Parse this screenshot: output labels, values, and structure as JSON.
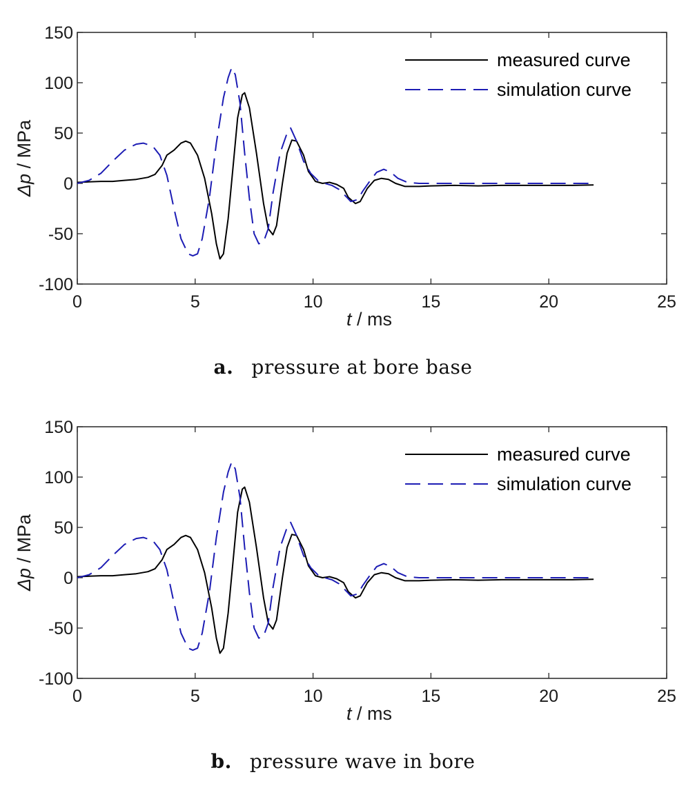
{
  "colors": {
    "measured": "#000000",
    "simulation": "#1c1cb4",
    "axis": "#262626"
  },
  "chart_data": [
    {
      "type": "line",
      "caption_letter": "a.",
      "caption_text": "pressure at bore base",
      "xlabel_var": "t",
      "xlabel_unit": " / ms",
      "ylabel_var": "Δp",
      "ylabel_unit": " / MPa",
      "xlim": [
        0,
        25
      ],
      "ylim": [
        -100,
        150
      ],
      "xticks": [
        0,
        5,
        10,
        15,
        20,
        25
      ],
      "yticks": [
        -100,
        -50,
        0,
        50,
        100,
        150
      ],
      "grid": false,
      "legend_position": "top-right",
      "series": [
        {
          "name": "measured curve",
          "style": "solid",
          "color_key": "measured",
          "points": [
            [
              0,
              1
            ],
            [
              0.5,
              1.5
            ],
            [
              1,
              2
            ],
            [
              1.5,
              2
            ],
            [
              2,
              3
            ],
            [
              2.5,
              4
            ],
            [
              3,
              6
            ],
            [
              3.3,
              9
            ],
            [
              3.6,
              18
            ],
            [
              3.8,
              28
            ],
            [
              4.1,
              33
            ],
            [
              4.4,
              40
            ],
            [
              4.6,
              42
            ],
            [
              4.8,
              40
            ],
            [
              5.1,
              28
            ],
            [
              5.4,
              5
            ],
            [
              5.7,
              -30
            ],
            [
              5.9,
              -60
            ],
            [
              6.05,
              -75
            ],
            [
              6.2,
              -70
            ],
            [
              6.4,
              -35
            ],
            [
              6.6,
              15
            ],
            [
              6.8,
              65
            ],
            [
              7.0,
              88
            ],
            [
              7.1,
              90
            ],
            [
              7.3,
              75
            ],
            [
              7.6,
              30
            ],
            [
              7.9,
              -20
            ],
            [
              8.1,
              -45
            ],
            [
              8.3,
              -51
            ],
            [
              8.45,
              -42
            ],
            [
              8.7,
              0
            ],
            [
              8.9,
              30
            ],
            [
              9.1,
              43
            ],
            [
              9.3,
              42
            ],
            [
              9.6,
              28
            ],
            [
              9.8,
              12
            ],
            [
              10.1,
              2
            ],
            [
              10.4,
              0
            ],
            [
              10.7,
              1
            ],
            [
              11.0,
              -1
            ],
            [
              11.3,
              -5
            ],
            [
              11.5,
              -14
            ],
            [
              11.8,
              -20
            ],
            [
              12.0,
              -18
            ],
            [
              12.3,
              -5
            ],
            [
              12.6,
              3
            ],
            [
              12.9,
              5
            ],
            [
              13.2,
              4
            ],
            [
              13.5,
              0
            ],
            [
              13.9,
              -3
            ],
            [
              14.5,
              -3
            ],
            [
              15,
              -2.5
            ],
            [
              16,
              -2
            ],
            [
              17,
              -2.5
            ],
            [
              18,
              -2
            ],
            [
              19,
              -2
            ],
            [
              20,
              -2
            ],
            [
              21,
              -2
            ],
            [
              21.9,
              -1.5
            ]
          ]
        },
        {
          "name": "simulation curve",
          "style": "dashed",
          "color_key": "simulation",
          "points": [
            [
              0,
              0
            ],
            [
              0.5,
              3
            ],
            [
              1,
              10
            ],
            [
              1.5,
              22
            ],
            [
              2,
              33
            ],
            [
              2.5,
              39
            ],
            [
              2.8,
              40
            ],
            [
              3.2,
              37
            ],
            [
              3.5,
              28
            ],
            [
              3.8,
              8
            ],
            [
              4.1,
              -25
            ],
            [
              4.4,
              -55
            ],
            [
              4.7,
              -70
            ],
            [
              4.9,
              -72
            ],
            [
              5.1,
              -70
            ],
            [
              5.3,
              -55
            ],
            [
              5.6,
              -15
            ],
            [
              5.9,
              40
            ],
            [
              6.2,
              85
            ],
            [
              6.4,
              105
            ],
            [
              6.55,
              115
            ],
            [
              6.7,
              108
            ],
            [
              6.9,
              80
            ],
            [
              7.1,
              30
            ],
            [
              7.3,
              -15
            ],
            [
              7.5,
              -50
            ],
            [
              7.7,
              -60
            ],
            [
              7.9,
              -58
            ],
            [
              8.1,
              -45
            ],
            [
              8.3,
              -10
            ],
            [
              8.6,
              30
            ],
            [
              8.9,
              50
            ],
            [
              9.05,
              55
            ],
            [
              9.3,
              42
            ],
            [
              9.6,
              22
            ],
            [
              9.9,
              10
            ],
            [
              10.2,
              3
            ],
            [
              10.5,
              0
            ],
            [
              10.8,
              -2
            ],
            [
              11.1,
              -6
            ],
            [
              11.4,
              -13
            ],
            [
              11.6,
              -18
            ],
            [
              11.9,
              -16
            ],
            [
              12.1,
              -8
            ],
            [
              12.4,
              2
            ],
            [
              12.7,
              11
            ],
            [
              13.0,
              14
            ],
            [
              13.3,
              11
            ],
            [
              13.6,
              5
            ],
            [
              14.0,
              1
            ],
            [
              14.5,
              0
            ],
            [
              15,
              0
            ],
            [
              16,
              0
            ],
            [
              17,
              0
            ],
            [
              18,
              0
            ],
            [
              19,
              0
            ],
            [
              20,
              0
            ],
            [
              21,
              0
            ],
            [
              21.9,
              0
            ]
          ]
        }
      ]
    },
    {
      "type": "line",
      "caption_letter": "b.",
      "caption_text": "pressure wave in bore",
      "xlabel_var": "t",
      "xlabel_unit": " / ms",
      "ylabel_var": "Δp",
      "ylabel_unit": " / MPa",
      "xlim": [
        0,
        25
      ],
      "ylim": [
        -100,
        150
      ],
      "xticks": [
        0,
        5,
        10,
        15,
        20,
        25
      ],
      "yticks": [
        -100,
        -50,
        0,
        50,
        100,
        150
      ],
      "grid": false,
      "legend_position": "top-right",
      "series": [
        {
          "name": "measured curve",
          "style": "solid",
          "color_key": "measured",
          "points": [
            [
              0,
              1
            ],
            [
              0.5,
              1.5
            ],
            [
              1,
              2
            ],
            [
              1.5,
              2
            ],
            [
              2,
              3
            ],
            [
              2.5,
              4
            ],
            [
              3,
              6
            ],
            [
              3.3,
              9
            ],
            [
              3.6,
              18
            ],
            [
              3.8,
              28
            ],
            [
              4.1,
              33
            ],
            [
              4.4,
              40
            ],
            [
              4.6,
              42
            ],
            [
              4.8,
              40
            ],
            [
              5.1,
              28
            ],
            [
              5.4,
              5
            ],
            [
              5.7,
              -30
            ],
            [
              5.9,
              -60
            ],
            [
              6.05,
              -75
            ],
            [
              6.2,
              -70
            ],
            [
              6.4,
              -35
            ],
            [
              6.6,
              15
            ],
            [
              6.8,
              65
            ],
            [
              7.0,
              88
            ],
            [
              7.1,
              90
            ],
            [
              7.3,
              75
            ],
            [
              7.6,
              30
            ],
            [
              7.9,
              -20
            ],
            [
              8.1,
              -45
            ],
            [
              8.3,
              -51
            ],
            [
              8.45,
              -42
            ],
            [
              8.7,
              0
            ],
            [
              8.9,
              30
            ],
            [
              9.1,
              43
            ],
            [
              9.3,
              42
            ],
            [
              9.6,
              28
            ],
            [
              9.8,
              12
            ],
            [
              10.1,
              2
            ],
            [
              10.4,
              0
            ],
            [
              10.7,
              1
            ],
            [
              11.0,
              -1
            ],
            [
              11.3,
              -5
            ],
            [
              11.5,
              -14
            ],
            [
              11.8,
              -20
            ],
            [
              12.0,
              -18
            ],
            [
              12.3,
              -5
            ],
            [
              12.6,
              3
            ],
            [
              12.9,
              5
            ],
            [
              13.2,
              4
            ],
            [
              13.5,
              0
            ],
            [
              13.9,
              -3
            ],
            [
              14.5,
              -3
            ],
            [
              15,
              -2.5
            ],
            [
              16,
              -2
            ],
            [
              17,
              -2.5
            ],
            [
              18,
              -2
            ],
            [
              19,
              -2
            ],
            [
              20,
              -2
            ],
            [
              21,
              -2
            ],
            [
              21.9,
              -1.5
            ]
          ]
        },
        {
          "name": "simulation curve",
          "style": "dashed",
          "color_key": "simulation",
          "points": [
            [
              0,
              0
            ],
            [
              0.5,
              3
            ],
            [
              1,
              10
            ],
            [
              1.5,
              22
            ],
            [
              2,
              33
            ],
            [
              2.5,
              39
            ],
            [
              2.8,
              40
            ],
            [
              3.2,
              37
            ],
            [
              3.5,
              28
            ],
            [
              3.8,
              8
            ],
            [
              4.1,
              -25
            ],
            [
              4.4,
              -55
            ],
            [
              4.7,
              -70
            ],
            [
              4.9,
              -72
            ],
            [
              5.1,
              -70
            ],
            [
              5.3,
              -55
            ],
            [
              5.6,
              -15
            ],
            [
              5.9,
              40
            ],
            [
              6.2,
              85
            ],
            [
              6.4,
              105
            ],
            [
              6.55,
              115
            ],
            [
              6.7,
              108
            ],
            [
              6.9,
              80
            ],
            [
              7.1,
              30
            ],
            [
              7.3,
              -15
            ],
            [
              7.5,
              -50
            ],
            [
              7.7,
              -60
            ],
            [
              7.9,
              -58
            ],
            [
              8.1,
              -45
            ],
            [
              8.3,
              -10
            ],
            [
              8.6,
              30
            ],
            [
              8.9,
              50
            ],
            [
              9.05,
              55
            ],
            [
              9.3,
              42
            ],
            [
              9.6,
              22
            ],
            [
              9.9,
              10
            ],
            [
              10.2,
              3
            ],
            [
              10.5,
              0
            ],
            [
              10.8,
              -2
            ],
            [
              11.1,
              -6
            ],
            [
              11.4,
              -13
            ],
            [
              11.6,
              -18
            ],
            [
              11.9,
              -16
            ],
            [
              12.1,
              -8
            ],
            [
              12.4,
              2
            ],
            [
              12.7,
              11
            ],
            [
              13.0,
              14
            ],
            [
              13.3,
              11
            ],
            [
              13.6,
              5
            ],
            [
              14.0,
              1
            ],
            [
              14.5,
              0
            ],
            [
              15,
              0
            ],
            [
              16,
              0
            ],
            [
              17,
              0
            ],
            [
              18,
              0
            ],
            [
              19,
              0
            ],
            [
              20,
              0
            ],
            [
              21,
              0
            ],
            [
              21.9,
              0
            ]
          ]
        }
      ]
    }
  ]
}
